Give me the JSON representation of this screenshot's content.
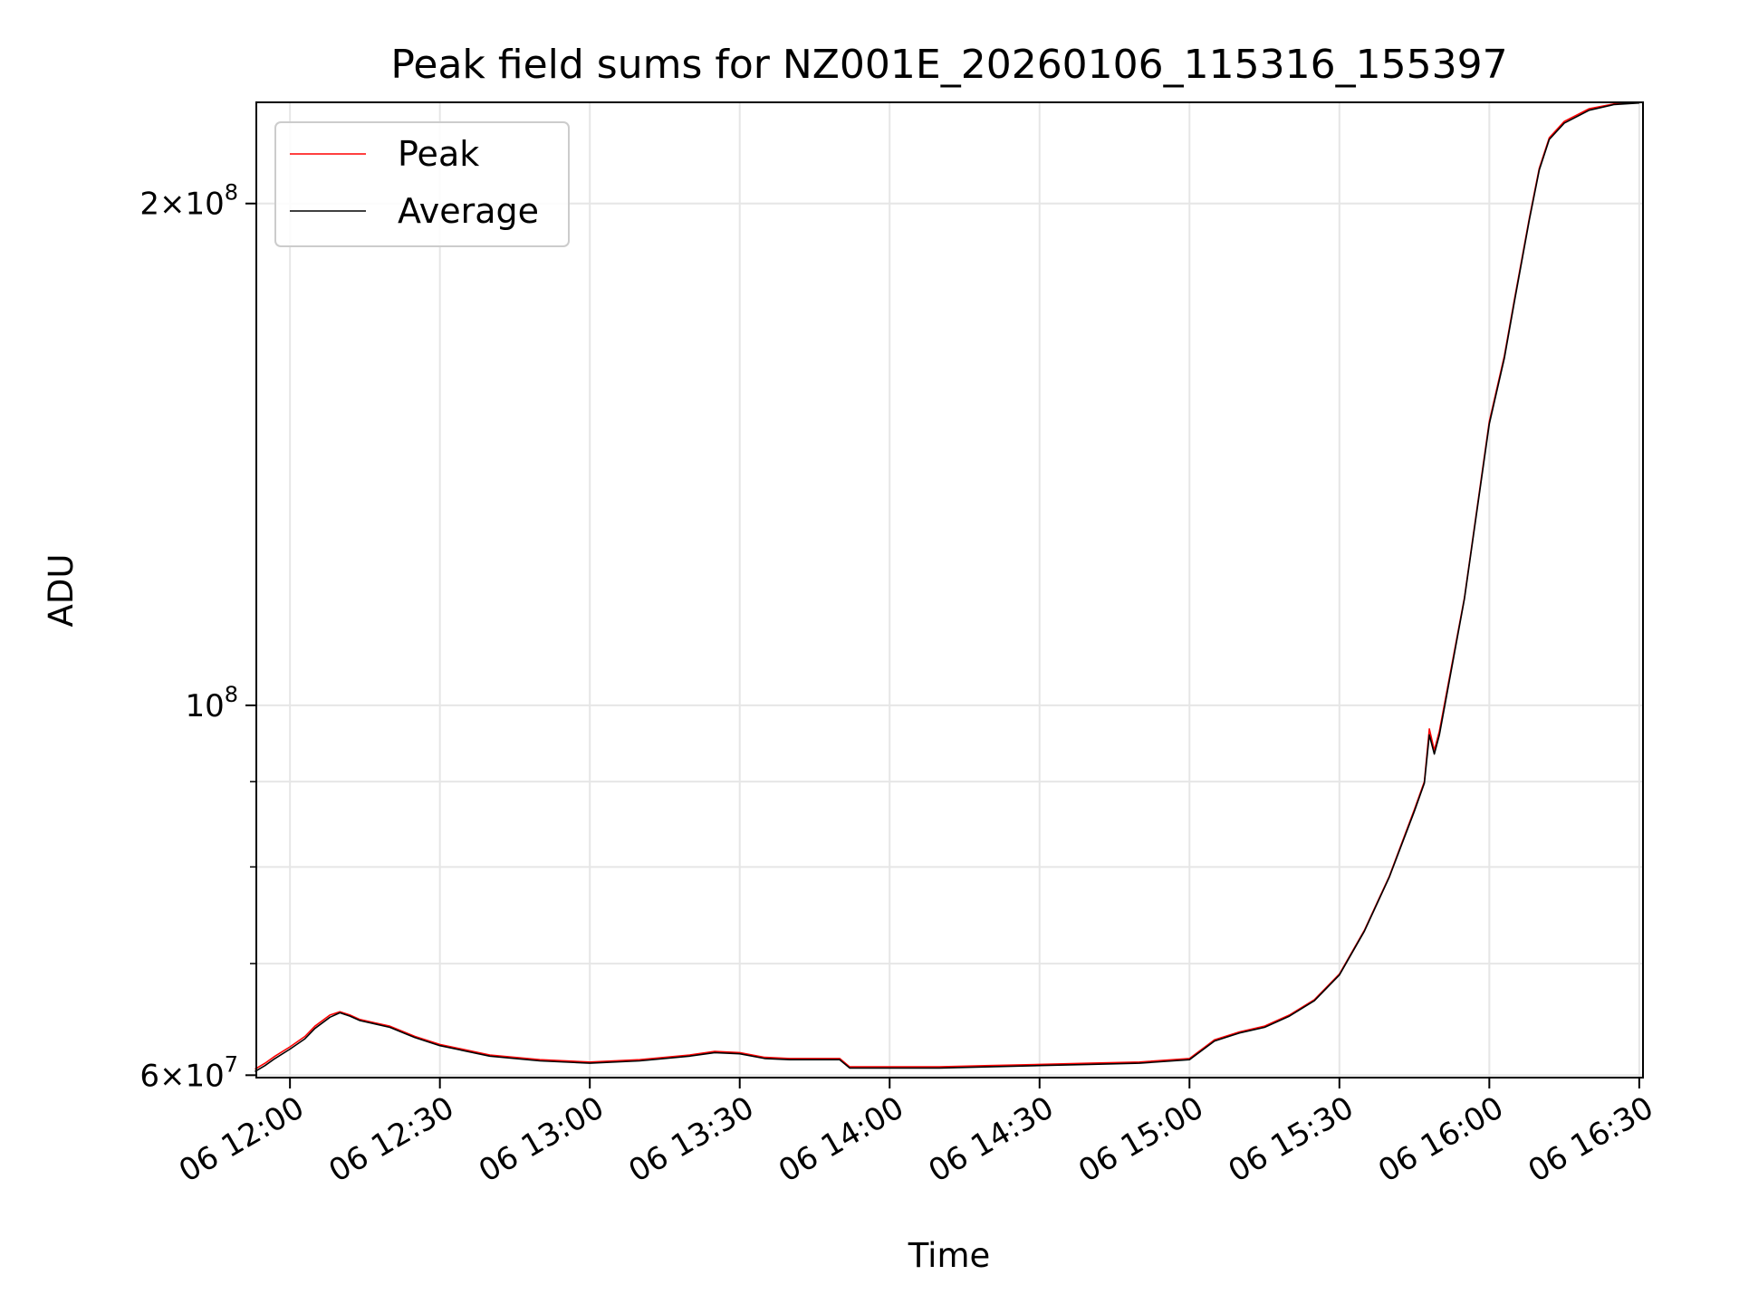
{
  "chart_data": {
    "type": "line",
    "title": "Peak field sums for NZ001E_20260106_115316_155397",
    "xlabel": "Time",
    "ylabel": "ADU",
    "y_scale": "log",
    "ylim": [
      59800000,
      230000000
    ],
    "xlim": [
      "06 11:53:16",
      "06 16:30:45"
    ],
    "grid": true,
    "legend_placement": "top-left",
    "x_ticks": [
      "06 12:00",
      "06 12:30",
      "06 13:00",
      "06 13:30",
      "06 14:00",
      "06 14:30",
      "06 15:00",
      "06 15:30",
      "06 16:00",
      "06 16:30"
    ],
    "y_tick_labels": [
      {
        "value": 60000000,
        "mantissa": "6",
        "exponent": "7"
      },
      {
        "value": 100000000,
        "mantissa": "",
        "exponent": "8"
      },
      {
        "value": 200000000,
        "mantissa": "2",
        "exponent": "8"
      }
    ],
    "y_minor_ticks": [
      70000000,
      80000000,
      90000000
    ],
    "series": [
      {
        "name": "Peak",
        "color": "#ff0000",
        "x": [
          "06 11:53",
          "06 11:55",
          "06 11:57",
          "06 12:00",
          "06 12:03",
          "06 12:05",
          "06 12:08",
          "06 12:10",
          "06 12:12",
          "06 12:14",
          "06 12:17",
          "06 12:20",
          "06 12:25",
          "06 12:30",
          "06 12:40",
          "06 12:50",
          "06 13:00",
          "06 13:10",
          "06 13:20",
          "06 13:25",
          "06 13:30",
          "06 13:35",
          "06 13:40",
          "06 13:50",
          "06 13:52",
          "06 14:00",
          "06 14:10",
          "06 14:20",
          "06 14:30",
          "06 14:40",
          "06 14:50",
          "06 15:00",
          "06 15:05",
          "06 15:10",
          "06 15:15",
          "06 15:20",
          "06 15:25",
          "06 15:30",
          "06 15:35",
          "06 15:40",
          "06 15:45",
          "06 15:47",
          "06 15:48",
          "06 15:49",
          "06 15:50",
          "06 15:55",
          "06 16:00",
          "06 16:03",
          "06 16:05",
          "06 16:08",
          "06 16:10",
          "06 16:12",
          "06 16:15",
          "06 16:20",
          "06 16:25",
          "06 16:30"
        ],
        "y": [
          60500000,
          61000000,
          61600000,
          62400000,
          63300000,
          64200000,
          65200000,
          65500000,
          65200000,
          64800000,
          64500000,
          64200000,
          63300000,
          62600000,
          61700000,
          61300000,
          61100000,
          61300000,
          61700000,
          62000000,
          61900000,
          61500000,
          61400000,
          61400000,
          60700000,
          60700000,
          60700000,
          60800000,
          60900000,
          61000000,
          61100000,
          61400000,
          63000000,
          63700000,
          64200000,
          65200000,
          66600000,
          69000000,
          73300000,
          79000000,
          86600000,
          90000000,
          96800000,
          94000000,
          96500000,
          116000000,
          148000000,
          162000000,
          175000000,
          196000000,
          210000000,
          219000000,
          224000000,
          228000000,
          229500000,
          230000000
        ]
      },
      {
        "name": "Average",
        "color": "#000000",
        "x": [
          "06 11:53",
          "06 11:55",
          "06 11:57",
          "06 12:00",
          "06 12:03",
          "06 12:05",
          "06 12:08",
          "06 12:10",
          "06 12:12",
          "06 12:14",
          "06 12:17",
          "06 12:20",
          "06 12:25",
          "06 12:30",
          "06 12:40",
          "06 12:50",
          "06 13:00",
          "06 13:10",
          "06 13:20",
          "06 13:25",
          "06 13:30",
          "06 13:35",
          "06 13:40",
          "06 13:50",
          "06 13:52",
          "06 14:00",
          "06 14:10",
          "06 14:20",
          "06 14:30",
          "06 14:40",
          "06 14:50",
          "06 15:00",
          "06 15:05",
          "06 15:10",
          "06 15:15",
          "06 15:20",
          "06 15:25",
          "06 15:30",
          "06 15:35",
          "06 15:40",
          "06 15:45",
          "06 15:47",
          "06 15:48",
          "06 15:49",
          "06 15:50",
          "06 15:55",
          "06 16:00",
          "06 16:03",
          "06 16:05",
          "06 16:08",
          "06 16:10",
          "06 16:12",
          "06 16:15",
          "06 16:20",
          "06 16:25",
          "06 16:30"
        ],
        "y": [
          60300000,
          60800000,
          61400000,
          62200000,
          63100000,
          64000000,
          65000000,
          65400000,
          65100000,
          64700000,
          64400000,
          64100000,
          63200000,
          62500000,
          61600000,
          61200000,
          61000000,
          61200000,
          61600000,
          61900000,
          61800000,
          61400000,
          61300000,
          61300000,
          60600000,
          60600000,
          60600000,
          60700000,
          60800000,
          60900000,
          61000000,
          61300000,
          62900000,
          63600000,
          64100000,
          65100000,
          66500000,
          68900000,
          73200000,
          78900000,
          86400000,
          89800000,
          96000000,
          93500000,
          96000000,
          115800000,
          147500000,
          161500000,
          174500000,
          195500000,
          209500000,
          218500000,
          223500000,
          227500000,
          229300000,
          229800000
        ]
      }
    ]
  }
}
